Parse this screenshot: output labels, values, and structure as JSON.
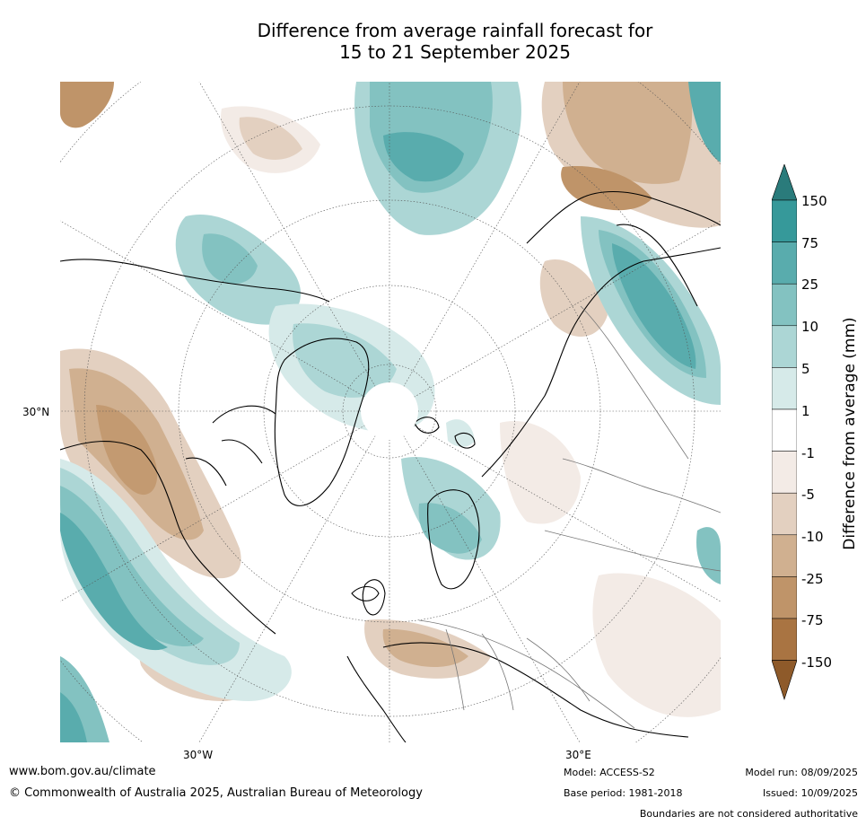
{
  "title_line1": "Difference from average rainfall forecast for",
  "title_line2": "15 to 21 September 2025",
  "map": {
    "projection": "north-polar-stereographic",
    "lat_label": "30°N",
    "lon_labels": {
      "west": "30°W",
      "east": "30°E"
    }
  },
  "colorbar": {
    "title": "Difference from average (mm)",
    "ticks": [
      "150",
      "75",
      "25",
      "10",
      "5",
      "1",
      "-1",
      "-5",
      "-10",
      "-25",
      "-75",
      "-150"
    ],
    "colors": {
      "over_max": "#2a7b7b",
      "band_75_150": "#36999a",
      "band_25_75": "#59acad",
      "band_10_25": "#83c2c1",
      "band_5_10": "#acd6d5",
      "band_1_5": "#d6eae9",
      "band_-1_1": "#ffffff",
      "band_-5_-1": "#f3ebe6",
      "band_-10_-5": "#e3d0c0",
      "band_-25_-10": "#d0b090",
      "band_-75_-25": "#bf9469",
      "band_-150_-75": "#a97442",
      "under_min": "#8e5a2a"
    }
  },
  "footer": {
    "website": "www.bom.gov.au/climate",
    "copyright": "© Commonwealth of Australia 2025, Australian Bureau of Meteorology",
    "model": "Model: ACCESS-S2",
    "base_period": "Base period: 1981-2018",
    "model_run": "Model run: 08/09/2025",
    "issued": "Issued: 10/09/2025",
    "disclaimer": "Boundaries are not considered authoritative"
  }
}
